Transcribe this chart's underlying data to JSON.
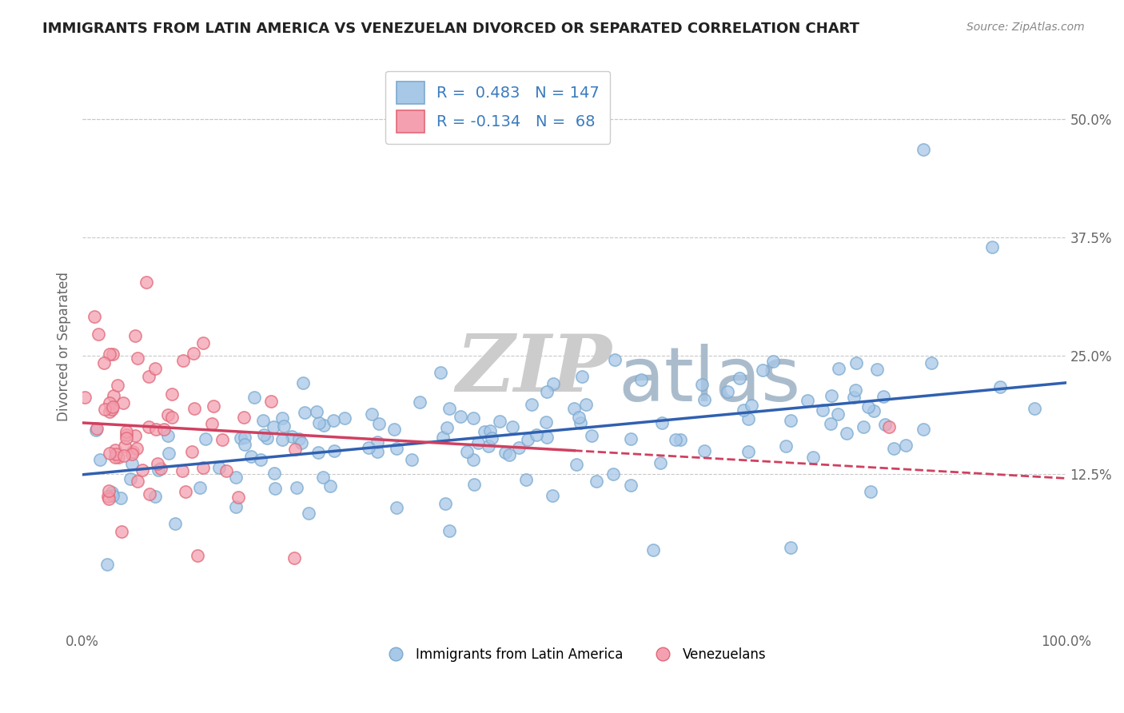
{
  "title": "IMMIGRANTS FROM LATIN AMERICA VS VENEZUELAN DIVORCED OR SEPARATED CORRELATION CHART",
  "source": "Source: ZipAtlas.com",
  "ylabel": "Divorced or Separated",
  "ytick_vals": [
    0.125,
    0.25,
    0.375,
    0.5
  ],
  "ytick_labels": [
    "12.5%",
    "25.0%",
    "37.5%",
    "50.0%"
  ],
  "xlim": [
    0.0,
    1.0
  ],
  "ylim": [
    -0.04,
    0.56
  ],
  "blue_R": 0.483,
  "blue_N": 147,
  "pink_R": -0.134,
  "pink_N": 68,
  "blue_color": "#A8C8E8",
  "blue_edge_color": "#7AAAD0",
  "pink_color": "#F4A0B0",
  "pink_edge_color": "#E06878",
  "blue_line_color": "#3060B0",
  "pink_line_color": "#D04060",
  "watermark_ZIP": "ZIP",
  "watermark_atlas": "atlas",
  "watermark_color_ZIP": "#CCCCCC",
  "watermark_color_atlas": "#AABCCC",
  "background_color": "#FFFFFF",
  "grid_color": "#C8C8C8",
  "legend_label_blue": "Immigrants from Latin America",
  "legend_label_pink": "Venezuelans",
  "title_color": "#222222",
  "axis_label_color": "#666666",
  "source_color": "#888888"
}
